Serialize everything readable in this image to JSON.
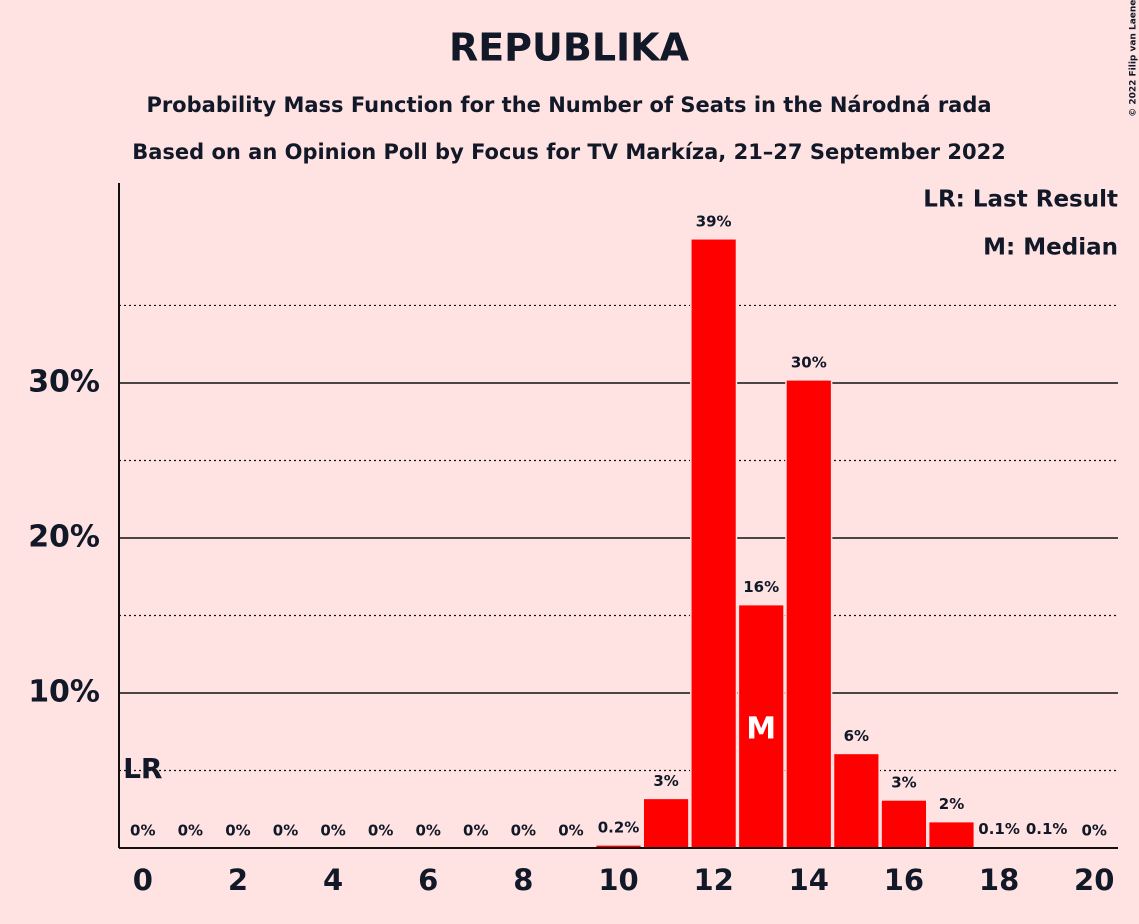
{
  "chart_data": {
    "type": "bar",
    "title": "REPUBLIKA",
    "subtitle": "Probability Mass Function for the Number of Seats in the Národná rada",
    "subtitle2": "Based on an Opinion Poll by Focus for TV Markíza, 21–27 September 2022",
    "copyright": "© 2022 Filip van Laenen",
    "legend": [
      "LR: Last Result",
      "M: Median"
    ],
    "last_result": {
      "x": 0,
      "label": "LR"
    },
    "median": {
      "x": 13,
      "label": "M"
    },
    "color": "#ff0000",
    "x": [
      0,
      1,
      2,
      3,
      4,
      5,
      6,
      7,
      8,
      9,
      10,
      11,
      12,
      13,
      14,
      15,
      16,
      17,
      18,
      19,
      20
    ],
    "values": [
      0,
      0,
      0,
      0,
      0,
      0,
      0,
      0,
      0,
      0,
      0.2,
      3.2,
      39.3,
      15.7,
      30.2,
      6.1,
      3.1,
      1.7,
      0.1,
      0.1,
      0
    ],
    "value_labels": [
      "0%",
      "0%",
      "0%",
      "0%",
      "0%",
      "0%",
      "0%",
      "0%",
      "0%",
      "0%",
      "0.2%",
      "3%",
      "39%",
      "16%",
      "30%",
      "6%",
      "3%",
      "2%",
      "0.1%",
      "0.1%",
      "0%"
    ],
    "xlim": [
      -0.5,
      20.5
    ],
    "xticks": [
      0,
      2,
      4,
      6,
      8,
      10,
      12,
      14,
      16,
      18,
      20
    ],
    "ylim": [
      0,
      42.9
    ],
    "yticks": [
      {
        "value": 10,
        "label": "10%"
      },
      {
        "value": 20,
        "label": "20%"
      },
      {
        "value": 30,
        "label": "30%"
      }
    ],
    "minor_yticks": [
      5,
      15,
      25,
      35
    ],
    "grid": true
  }
}
